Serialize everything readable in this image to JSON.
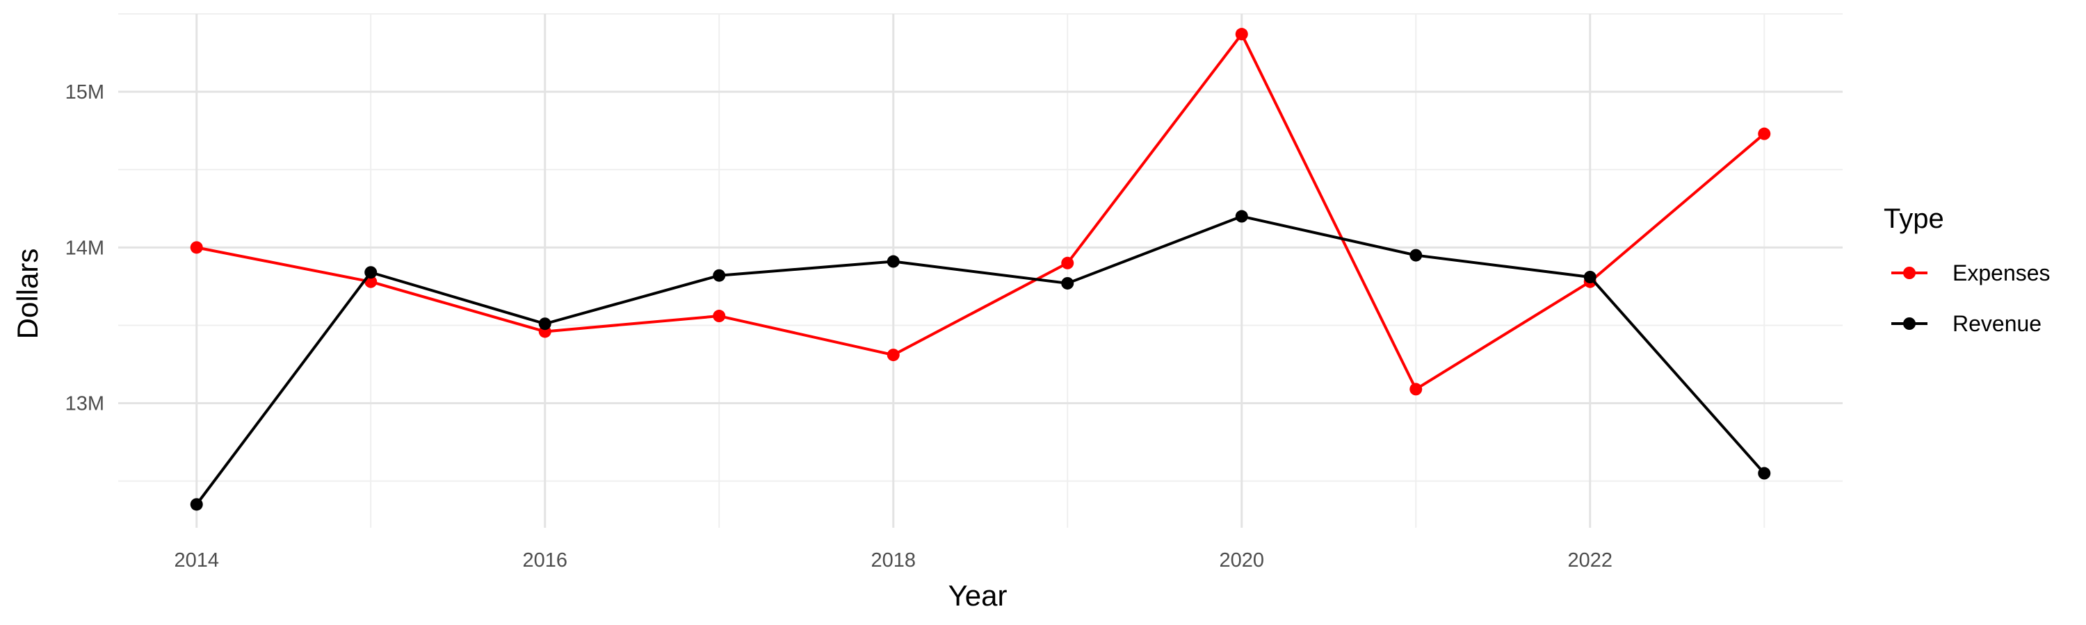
{
  "chart_data": {
    "type": "line",
    "xlabel": "Year",
    "ylabel": "Dollars",
    "x": [
      2014,
      2015,
      2016,
      2017,
      2018,
      2019,
      2020,
      2021,
      2022,
      2023
    ],
    "x_ticks": [
      2014,
      2016,
      2018,
      2020,
      2022
    ],
    "x_tick_labels": [
      "2014",
      "2016",
      "2018",
      "2020",
      "2022"
    ],
    "xlim": [
      2013.55,
      2023.45
    ],
    "y_ticks": [
      13000000,
      14000000,
      15000000
    ],
    "y_tick_labels": [
      "13M",
      "14M",
      "15M"
    ],
    "ylim": [
      12200000,
      15500000
    ],
    "grid": true,
    "legend": {
      "title": "Type",
      "position": "right"
    },
    "series": [
      {
        "name": "Expenses",
        "color": "#ff0000",
        "values": [
          14000000,
          13780000,
          13460000,
          13560000,
          13310000,
          13900000,
          15370000,
          13090000,
          13780000,
          14730000
        ]
      },
      {
        "name": "Revenue",
        "color": "#000000",
        "values": [
          12350000,
          13840000,
          13510000,
          13820000,
          13910000,
          13770000,
          14200000,
          13950000,
          13810000,
          12550000
        ]
      }
    ]
  }
}
